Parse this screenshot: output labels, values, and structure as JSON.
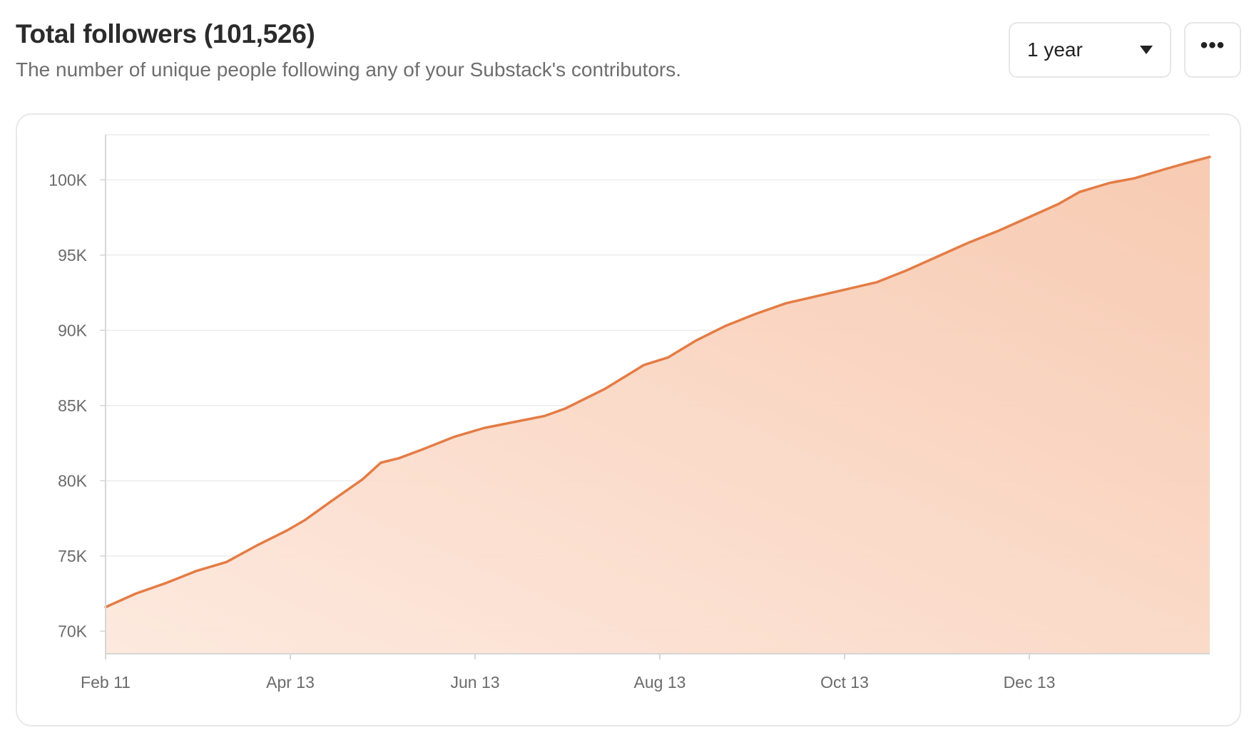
{
  "header": {
    "title": "Total followers (101,526)",
    "subtitle": "The number of unique people following any of your Substack's contributors."
  },
  "controls": {
    "range_label": "1 year",
    "range_icon": "chevron-down-icon",
    "more_label": "•••",
    "more_icon": "more-horizontal-icon"
  },
  "colors": {
    "line": "#e47c45",
    "fill_top": "#f7c8ae",
    "fill_bottom": "#fde8dd",
    "grid": "#ececec",
    "axis": "#d6d6d6"
  },
  "chart_data": {
    "type": "area",
    "title": "",
    "xlabel": "",
    "ylabel": "",
    "x_ticks": [
      "Feb 11",
      "Apr 13",
      "Jun 13",
      "Aug 13",
      "Oct 13",
      "Dec 13"
    ],
    "y_ticks": [
      "70K",
      "75K",
      "80K",
      "85K",
      "90K",
      "95K",
      "100K"
    ],
    "y_tick_values": [
      70000,
      75000,
      80000,
      85000,
      90000,
      95000,
      100000
    ],
    "ylim": [
      68500,
      103000
    ],
    "grid": true,
    "legend": "none",
    "series": [
      {
        "values_by_day": [
          [
            0,
            71600
          ],
          [
            10,
            72500
          ],
          [
            20,
            73200
          ],
          [
            30,
            74000
          ],
          [
            40,
            74600
          ],
          [
            50,
            75700
          ],
          [
            60,
            76700
          ],
          [
            66,
            77400
          ],
          [
            75,
            78700
          ],
          [
            85,
            80100
          ],
          [
            91,
            81200
          ],
          [
            97,
            81500
          ],
          [
            105,
            82100
          ],
          [
            115,
            82900
          ],
          [
            125,
            83500
          ],
          [
            135,
            83900
          ],
          [
            145,
            84300
          ],
          [
            152,
            84800
          ],
          [
            165,
            86100
          ],
          [
            178,
            87700
          ],
          [
            186,
            88200
          ],
          [
            195,
            89300
          ],
          [
            205,
            90300
          ],
          [
            215,
            91100
          ],
          [
            225,
            91800
          ],
          [
            240,
            92500
          ],
          [
            255,
            93200
          ],
          [
            265,
            94000
          ],
          [
            275,
            94900
          ],
          [
            285,
            95800
          ],
          [
            295,
            96600
          ],
          [
            305,
            97500
          ],
          [
            315,
            98400
          ],
          [
            322,
            99200
          ],
          [
            332,
            99800
          ],
          [
            340,
            100100
          ],
          [
            350,
            100700
          ],
          [
            357,
            101100
          ],
          [
            365,
            101526
          ]
        ]
      }
    ]
  }
}
